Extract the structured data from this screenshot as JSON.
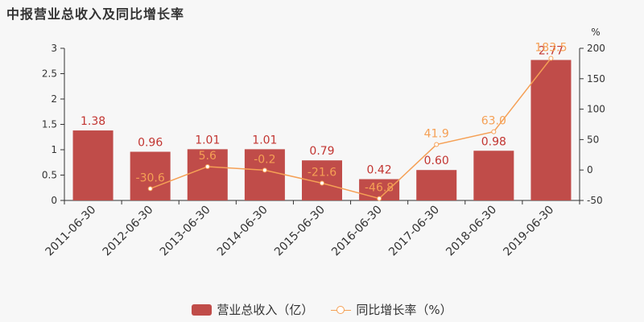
{
  "title": "中报营业总收入及同比增长率",
  "colors": {
    "bar": "#c04c49",
    "line": "#f5a055",
    "bar_label": "#c23531",
    "axis": "#333333"
  },
  "legend": {
    "bar": "营业总收入（亿）",
    "line": "同比增长率（%）"
  },
  "chart_data": {
    "type": "bar",
    "categories": [
      "2011-06-30",
      "2012-06-30",
      "2013-06-30",
      "2014-06-30",
      "2015-06-30",
      "2016-06-30",
      "2017-06-30",
      "2018-06-30",
      "2019-06-30"
    ],
    "series": [
      {
        "name": "营业总收入（亿）",
        "type": "bar",
        "axis": "left",
        "values": [
          1.38,
          0.96,
          1.01,
          1.01,
          0.79,
          0.42,
          0.6,
          0.98,
          2.77
        ],
        "labels": [
          "1.38",
          "0.96",
          "1.01",
          "1.01",
          "0.79",
          "0.42",
          "0.60",
          "0.98",
          "2.77"
        ]
      },
      {
        "name": "同比增长率（%）",
        "type": "line",
        "axis": "right",
        "values": [
          null,
          -30.6,
          5.6,
          -0.2,
          -21.6,
          -46.8,
          41.9,
          63.0,
          183.5
        ],
        "labels": [
          "",
          "-30.6",
          "5.6",
          "-0.2",
          "-21.6",
          "-46.8",
          "41.9",
          "63.0",
          "183.5"
        ]
      }
    ],
    "y_left": {
      "ylim": [
        0,
        3
      ],
      "ticks": [
        "0",
        "0.5",
        "1",
        "1.5",
        "2",
        "2.5",
        "3"
      ]
    },
    "y_right": {
      "label": "%",
      "ylim": [
        -50,
        200
      ],
      "ticks": [
        "-50",
        "0",
        "50",
        "100",
        "150",
        "200"
      ]
    },
    "legend_position": "bottom-center",
    "grid": false
  }
}
